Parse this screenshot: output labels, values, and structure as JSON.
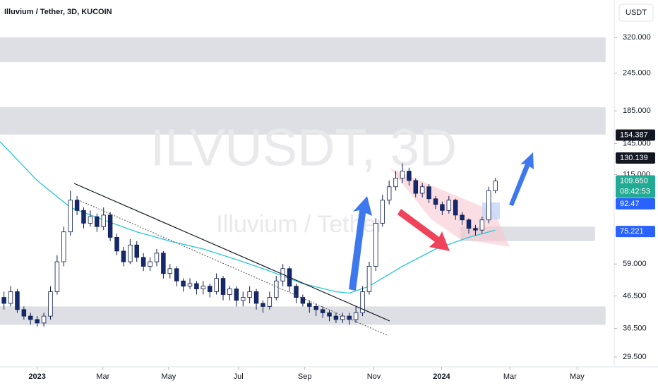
{
  "header": {
    "title": "Illuvium / Tether, 3D, KUCOIN",
    "currency": "USDT"
  },
  "watermark": {
    "symbol": "ILVUSDT, 3D",
    "name": "Illuvium / Tether"
  },
  "chart_data": {
    "type": "candlestick",
    "log_scale": true,
    "ylim": [
      27.4,
      423
    ],
    "xlim": [
      -5.6,
      86.9
    ],
    "yticks": [
      {
        "value": 320,
        "label": "320.000"
      },
      {
        "value": 245,
        "label": "245.000"
      },
      {
        "value": 185,
        "label": "185.000"
      },
      {
        "value": 145,
        "label": "145.000"
      },
      {
        "value": 115,
        "label": "115.000"
      },
      {
        "value": 59,
        "label": "59.000"
      },
      {
        "value": 46.5,
        "label": "46.500"
      },
      {
        "value": 36.5,
        "label": "36.500"
      },
      {
        "value": 29.5,
        "label": "29.500"
      }
    ],
    "xticks": [
      {
        "value": 0,
        "label": "2023"
      },
      {
        "value": 9.9,
        "label": "Mar"
      },
      {
        "value": 19.8,
        "label": "May"
      },
      {
        "value": 30.3,
        "label": "Jul"
      },
      {
        "value": 40.3,
        "label": "Sep"
      },
      {
        "value": 50.7,
        "label": "Nov"
      },
      {
        "value": 60.9,
        "label": "2024"
      },
      {
        "value": 71.2,
        "label": "Mar"
      },
      {
        "value": 81.3,
        "label": "May"
      }
    ],
    "up_color": "#ffffff",
    "down_color": "#152a6e",
    "wick_color": "#0d1b4a",
    "x": [
      -5,
      -4,
      -3,
      -2,
      -1,
      0,
      1,
      2,
      3,
      4,
      5,
      6,
      7,
      8,
      9,
      10,
      11,
      12,
      13,
      14,
      15,
      16,
      17,
      18,
      19,
      20,
      21,
      22,
      23,
      24,
      25,
      26,
      27,
      28,
      29,
      30,
      31,
      32,
      33,
      34,
      35,
      36,
      37,
      38,
      39,
      40,
      41,
      42,
      43,
      44,
      45,
      46,
      47,
      48,
      49,
      50,
      51,
      52,
      53,
      54,
      55,
      56,
      57,
      58,
      59,
      60,
      61,
      62,
      63,
      64,
      65,
      66,
      67,
      68,
      69
    ],
    "open": [
      46,
      44,
      48,
      42,
      40,
      39,
      38,
      40,
      48,
      60,
      75,
      95,
      88,
      80,
      84,
      78,
      85,
      72,
      65,
      60,
      68,
      62,
      58,
      60,
      64,
      55,
      57,
      52,
      50,
      51,
      49,
      50,
      48,
      53,
      47,
      49,
      45,
      46,
      48,
      44,
      43,
      46,
      52,
      57,
      50,
      46,
      44,
      43,
      42,
      41,
      40,
      39,
      40,
      39,
      41,
      48,
      58,
      80,
      95,
      105,
      112,
      118,
      110,
      100,
      105,
      96,
      92,
      88,
      95,
      85,
      82,
      77,
      76,
      82,
      102
    ],
    "high": [
      48,
      50,
      49,
      43,
      41,
      40,
      41,
      50,
      63,
      78,
      102,
      98,
      90,
      88,
      86,
      90,
      87,
      74,
      67,
      71,
      70,
      64,
      62,
      66,
      65,
      59,
      58,
      53,
      53,
      52,
      52,
      51,
      55,
      54,
      50,
      50,
      48,
      50,
      49,
      45,
      48,
      54,
      59,
      58,
      51,
      47,
      45,
      44,
      43,
      42,
      41,
      41,
      41,
      43,
      50,
      60,
      83,
      99,
      110,
      118,
      125,
      121,
      112,
      108,
      107,
      98,
      94,
      98,
      96,
      87,
      83,
      79,
      84,
      105,
      112
    ],
    "low": [
      42,
      43,
      41,
      39,
      37.5,
      37,
      37,
      39,
      47,
      58,
      73,
      85,
      77,
      78,
      75,
      76,
      70,
      63,
      58,
      59,
      60,
      56,
      56,
      58,
      53,
      53,
      50,
      48,
      49,
      47,
      47,
      46,
      47,
      45,
      45,
      43,
      43,
      44,
      42,
      41,
      42,
      45,
      50,
      48,
      44,
      43,
      41,
      40,
      39.5,
      38.5,
      38,
      38,
      37.5,
      38,
      40,
      47,
      56,
      78,
      92,
      102,
      108,
      106,
      97,
      97,
      93,
      89,
      85,
      86,
      82,
      79,
      74,
      73,
      74,
      80,
      100
    ],
    "close": [
      44,
      48,
      42,
      40,
      39,
      38,
      40,
      48,
      60,
      75,
      95,
      88,
      80,
      84,
      78,
      85,
      72,
      65,
      60,
      68,
      62,
      58,
      60,
      64,
      55,
      57,
      52,
      50,
      51,
      49,
      50,
      48,
      53,
      47,
      49,
      45,
      46,
      48,
      44,
      43,
      46,
      52,
      57,
      50,
      46,
      44,
      43,
      42,
      41,
      40,
      39,
      40,
      39,
      41,
      48,
      58,
      80,
      95,
      105,
      112,
      118,
      110,
      100,
      105,
      96,
      92,
      88,
      95,
      85,
      82,
      77,
      76,
      82,
      102,
      109.65
    ],
    "ma": {
      "color": "#26c6da",
      "x": [
        -5.6,
        0,
        5,
        10,
        15,
        20,
        25,
        30,
        35,
        40,
        45,
        47,
        50,
        55,
        60,
        65,
        69
      ],
      "values": [
        147,
        110,
        90,
        82,
        75,
        70,
        66,
        61,
        56,
        51,
        48,
        47.5,
        50,
        58,
        66,
        72,
        76
      ]
    },
    "zones": [
      {
        "ylim": [
          266,
          320
        ],
        "xlim": [
          -5.6,
          85.6
        ]
      },
      {
        "ylim": [
          155,
          190
        ],
        "xlim": [
          -5.6,
          85.6
        ]
      },
      {
        "ylim": [
          37.5,
          43
        ],
        "xlim": [
          -5.6,
          85.6
        ]
      },
      {
        "ylim": [
          70,
          78
        ],
        "xlim": [
          63.7,
          84
        ]
      }
    ],
    "price_tags": [
      {
        "value": 154.387,
        "color": "#131722"
      },
      {
        "value": 130.139,
        "color": "#131722"
      },
      {
        "value": 109.65,
        "label": "109.650",
        "sub": "08:42:53",
        "color": "#22ab94"
      },
      {
        "value": 92.47,
        "color": "#2962ff"
      },
      {
        "value": 75.221,
        "color": "#2962ff"
      }
    ]
  }
}
